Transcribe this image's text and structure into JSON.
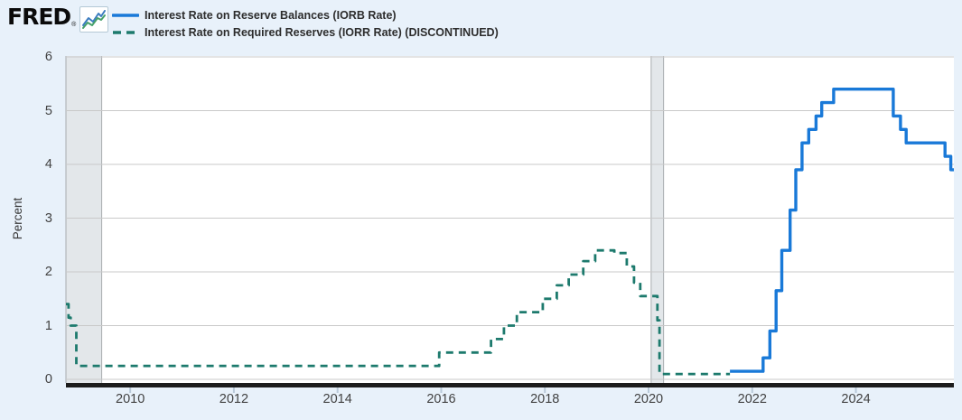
{
  "header": {
    "logo": "FRED",
    "registered": "®"
  },
  "legend": [
    {
      "label": "Interest Rate on Reserve Balances (IORB Rate)",
      "color": "#1979d8",
      "style": "solid"
    },
    {
      "label": "Interest Rate on Required Reserves (IORR Rate) (DISCONTINUED)",
      "color": "#1d7a6d",
      "style": "dashed"
    }
  ],
  "chart_data": {
    "type": "line",
    "step": true,
    "title": "",
    "xlabel": "",
    "ylabel": "Percent",
    "xlim": [
      2008.76,
      2025.89
    ],
    "ylim": [
      0,
      6
    ],
    "y_ticks": [
      0,
      1,
      2,
      3,
      4,
      5,
      6
    ],
    "x_ticks": [
      2010,
      2012,
      2014,
      2016,
      2018,
      2020,
      2022,
      2024
    ],
    "grid": "horizontal",
    "legend_position": "top",
    "recession_bands": [
      [
        2008.76,
        2009.45
      ],
      [
        2020.05,
        2020.29
      ]
    ],
    "series": [
      {
        "name": "Interest Rate on Required Reserves (IORR Rate) (DISCONTINUED)",
        "color": "#1d7a6d",
        "dash": true,
        "end": 2021.57,
        "points": [
          [
            2008.76,
            1.4
          ],
          [
            2008.81,
            1.15
          ],
          [
            2008.85,
            1.0
          ],
          [
            2008.96,
            0.25
          ],
          [
            2015.96,
            0.5
          ],
          [
            2016.96,
            0.75
          ],
          [
            2017.21,
            1.0
          ],
          [
            2017.46,
            1.25
          ],
          [
            2017.96,
            1.5
          ],
          [
            2018.23,
            1.75
          ],
          [
            2018.46,
            1.95
          ],
          [
            2018.74,
            2.2
          ],
          [
            2018.97,
            2.4
          ],
          [
            2019.34,
            2.35
          ],
          [
            2019.58,
            2.1
          ],
          [
            2019.72,
            1.8
          ],
          [
            2019.84,
            1.55
          ],
          [
            2020.17,
            1.1
          ],
          [
            2020.21,
            0.1
          ]
        ]
      },
      {
        "name": "Interest Rate on Reserve Balances (IORB Rate)",
        "color": "#1979d8",
        "dash": false,
        "end": 2025.89,
        "points": [
          [
            2021.57,
            0.15
          ],
          [
            2022.21,
            0.4
          ],
          [
            2022.34,
            0.9
          ],
          [
            2022.46,
            1.65
          ],
          [
            2022.57,
            2.4
          ],
          [
            2022.73,
            3.15
          ],
          [
            2022.84,
            3.9
          ],
          [
            2022.96,
            4.4
          ],
          [
            2023.09,
            4.65
          ],
          [
            2023.23,
            4.9
          ],
          [
            2023.34,
            5.15
          ],
          [
            2023.57,
            5.4
          ],
          [
            2024.72,
            4.9
          ],
          [
            2024.86,
            4.65
          ],
          [
            2024.97,
            4.4
          ],
          [
            2025.72,
            4.15
          ],
          [
            2025.83,
            3.9
          ]
        ]
      }
    ]
  },
  "colors": {
    "background": "#e8f1fa",
    "plot_background": "#ffffff",
    "gridline": "#c9c9c9",
    "axis_bar": "#1c1c1c",
    "recession_band": "#e3e7ea",
    "recession_band_edge": "#a8acaf",
    "tick_mark": "#b9c9d9",
    "tick_text": "#424242"
  }
}
